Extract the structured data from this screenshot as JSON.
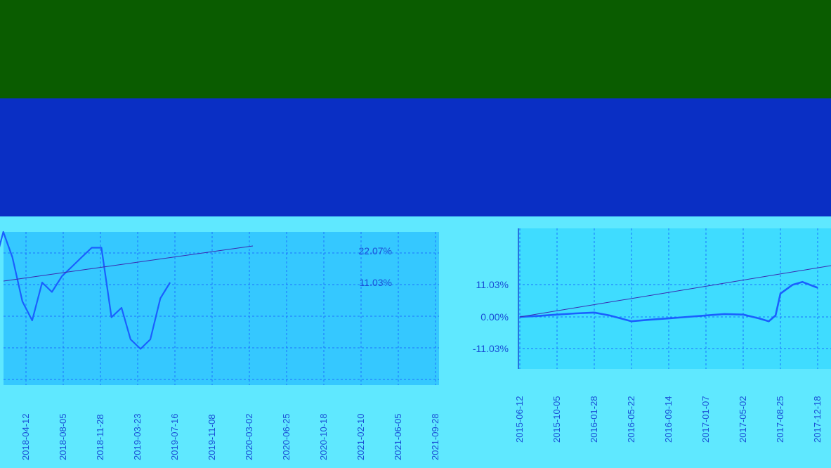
{
  "title_text": "",
  "colors": {
    "band_green": "#0a5c00",
    "band_blue": "#0a2fc4",
    "band_cyan": "#5fe8ff",
    "panel_left_bg": "#35c8ff",
    "panel_right_bg": "#3fdcff",
    "line": "#1a5fff",
    "thin_line": "#3a2bb0",
    "grid": "#1a74ff",
    "tick_text": "#1a4fd6"
  },
  "chart_data": [
    {
      "type": "line",
      "title": "",
      "xlabel": "",
      "ylabel": "",
      "x_ticks": [
        "2018-04-12",
        "2018-08-05",
        "2018-11-28",
        "2019-03-23",
        "2019-07-16",
        "2019-11-08",
        "2020-03-02",
        "2020-06-25",
        "2020-10-18",
        "2021-02-10",
        "2021-06-05",
        "2021-09-28"
      ],
      "y_ticks": [
        "22.07%",
        "11.03%"
      ],
      "grid": true,
      "series": [
        {
          "name": "",
          "x": [
            "2018-01-01",
            "2018-02-01",
            "2018-03-01",
            "2018-04-01",
            "2018-05-01",
            "2018-06-01",
            "2018-07-01",
            "2018-08-01",
            "2018-09-01",
            "2018-10-01",
            "2018-11-01",
            "2018-12-01",
            "2019-01-01",
            "2019-02-01",
            "2019-03-01",
            "2019-04-01",
            "2019-05-01",
            "2019-06-01",
            "2019-07-01"
          ],
          "y": [
            8,
            20,
            12,
            -2,
            -8,
            4,
            1,
            6,
            9,
            12,
            15,
            15,
            -7,
            -4,
            -14,
            -17,
            -14,
            -1,
            4
          ]
        }
      ]
    },
    {
      "type": "line",
      "title": "",
      "xlabel": "",
      "ylabel": "",
      "x_ticks": [
        "2015-06-12",
        "2015-10-05",
        "2016-01-28",
        "2016-05-22",
        "2016-09-14",
        "2017-01-07",
        "2017-05-02",
        "2017-08-25",
        "2017-12-18"
      ],
      "y_ticks": [
        "11.03%",
        "0.00%",
        "-11.03%"
      ],
      "grid": true,
      "series": [
        {
          "name": "",
          "x": [
            "2015-06-12",
            "2015-08-01",
            "2015-10-05",
            "2015-12-01",
            "2016-01-28",
            "2016-03-15",
            "2016-05-22",
            "2016-07-15",
            "2016-09-14",
            "2016-11-10",
            "2017-01-07",
            "2017-03-05",
            "2017-05-02",
            "2017-06-20",
            "2017-07-20",
            "2017-08-10",
            "2017-08-25",
            "2017-10-01",
            "2017-11-01",
            "2017-12-18"
          ],
          "y": [
            0.0,
            0.3,
            0.8,
            1.2,
            1.5,
            0.5,
            -1.5,
            -1.0,
            -0.5,
            0.0,
            0.5,
            1.0,
            0.8,
            -0.5,
            -1.5,
            0.5,
            8.0,
            11.0,
            12.0,
            10.0
          ]
        }
      ]
    }
  ]
}
